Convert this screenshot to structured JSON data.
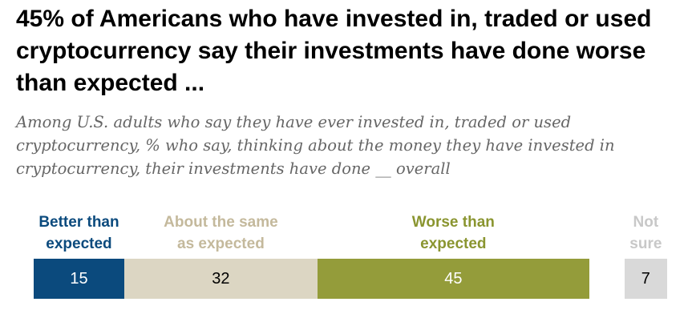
{
  "title": "45% of Americans who have invested in, traded or used cryptocurrency say their investments have done worse than expected ...",
  "subtitle": "Among U.S. adults who say they have ever invested in, traded or used cryptocurrency, % who say, thinking about the money they have invested in cryptocurrency, their investments have done __ overall",
  "chart_data": {
    "type": "bar",
    "orientation": "horizontal-stacked",
    "categories": [
      "Better than expected",
      "About the same as expected",
      "Worse than expected",
      "Not sure"
    ],
    "values": [
      15,
      32,
      45,
      7
    ],
    "colors": [
      "#0b4a7d",
      "#dcd6c3",
      "#949c3a",
      "#d9d9d9"
    ],
    "label_colors": [
      "#0b4a7d",
      "#c4b99c",
      "#8a9530",
      "#c8c8c8"
    ],
    "value_colors": [
      "#ffffff",
      "#000000",
      "#ffffff",
      "#000000"
    ],
    "separate_last": true
  }
}
